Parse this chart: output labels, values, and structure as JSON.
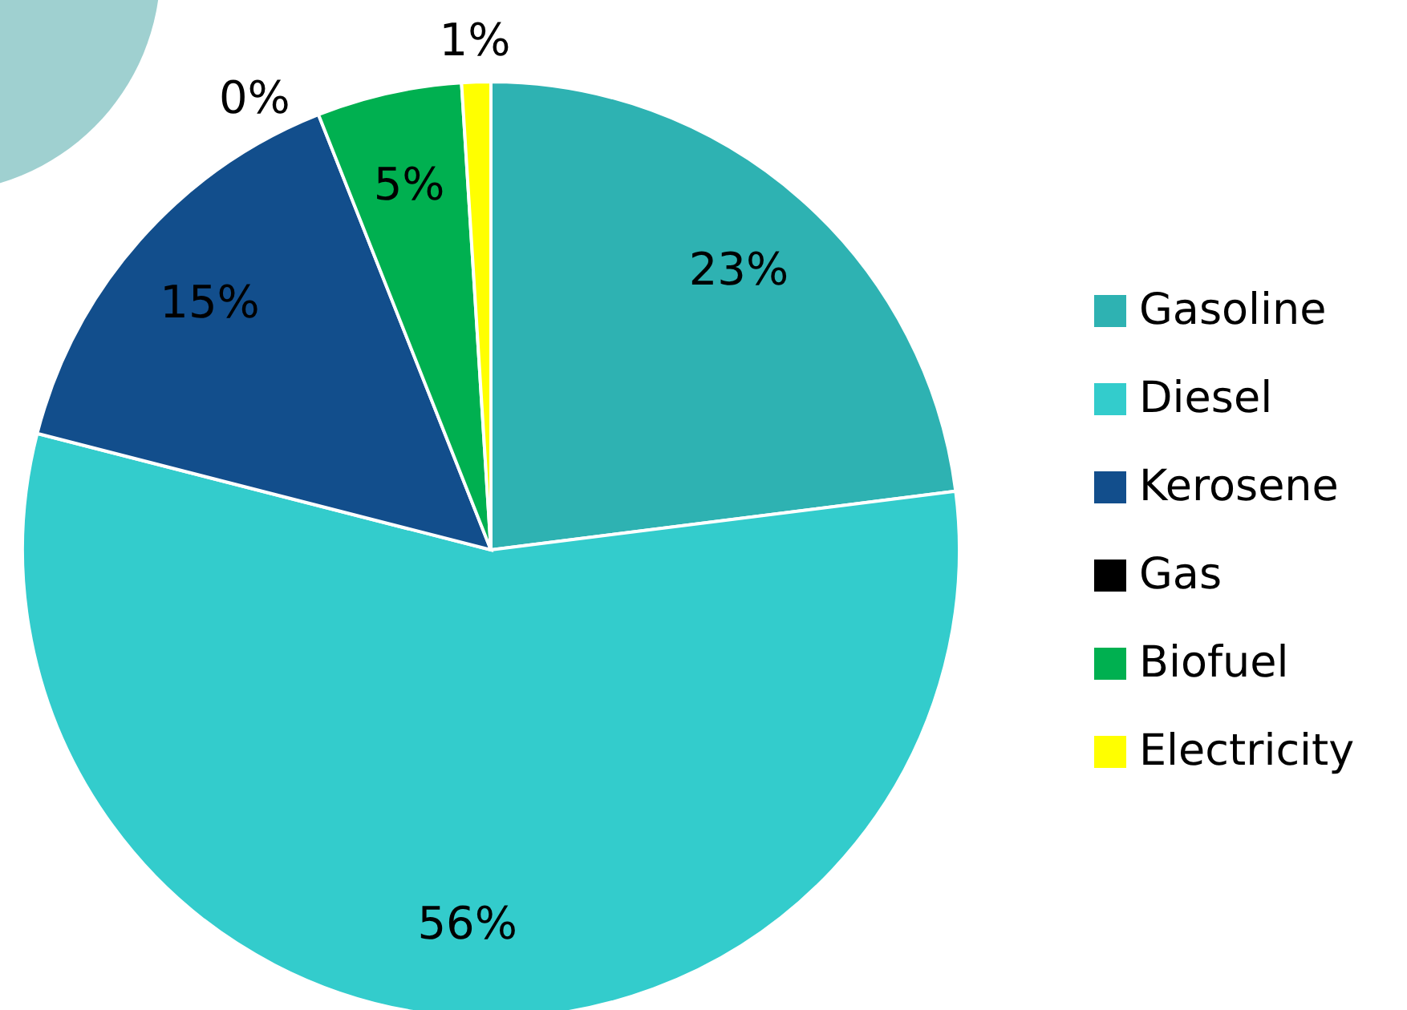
{
  "chart_data": {
    "type": "pie",
    "categories": [
      "Gasoline",
      "Diesel",
      "Kerosene",
      "Gas",
      "Biofuel",
      "Electricity"
    ],
    "values": [
      23,
      56,
      15,
      0,
      5,
      1
    ],
    "colors": [
      "#2eb2b2",
      "#33cccc",
      "#124e8c",
      "#000000",
      "#00b050",
      "#ffff00"
    ],
    "value_labels": [
      "23%",
      "56%",
      "15%",
      "0%",
      "5%",
      "1%"
    ],
    "legend": "right"
  }
}
